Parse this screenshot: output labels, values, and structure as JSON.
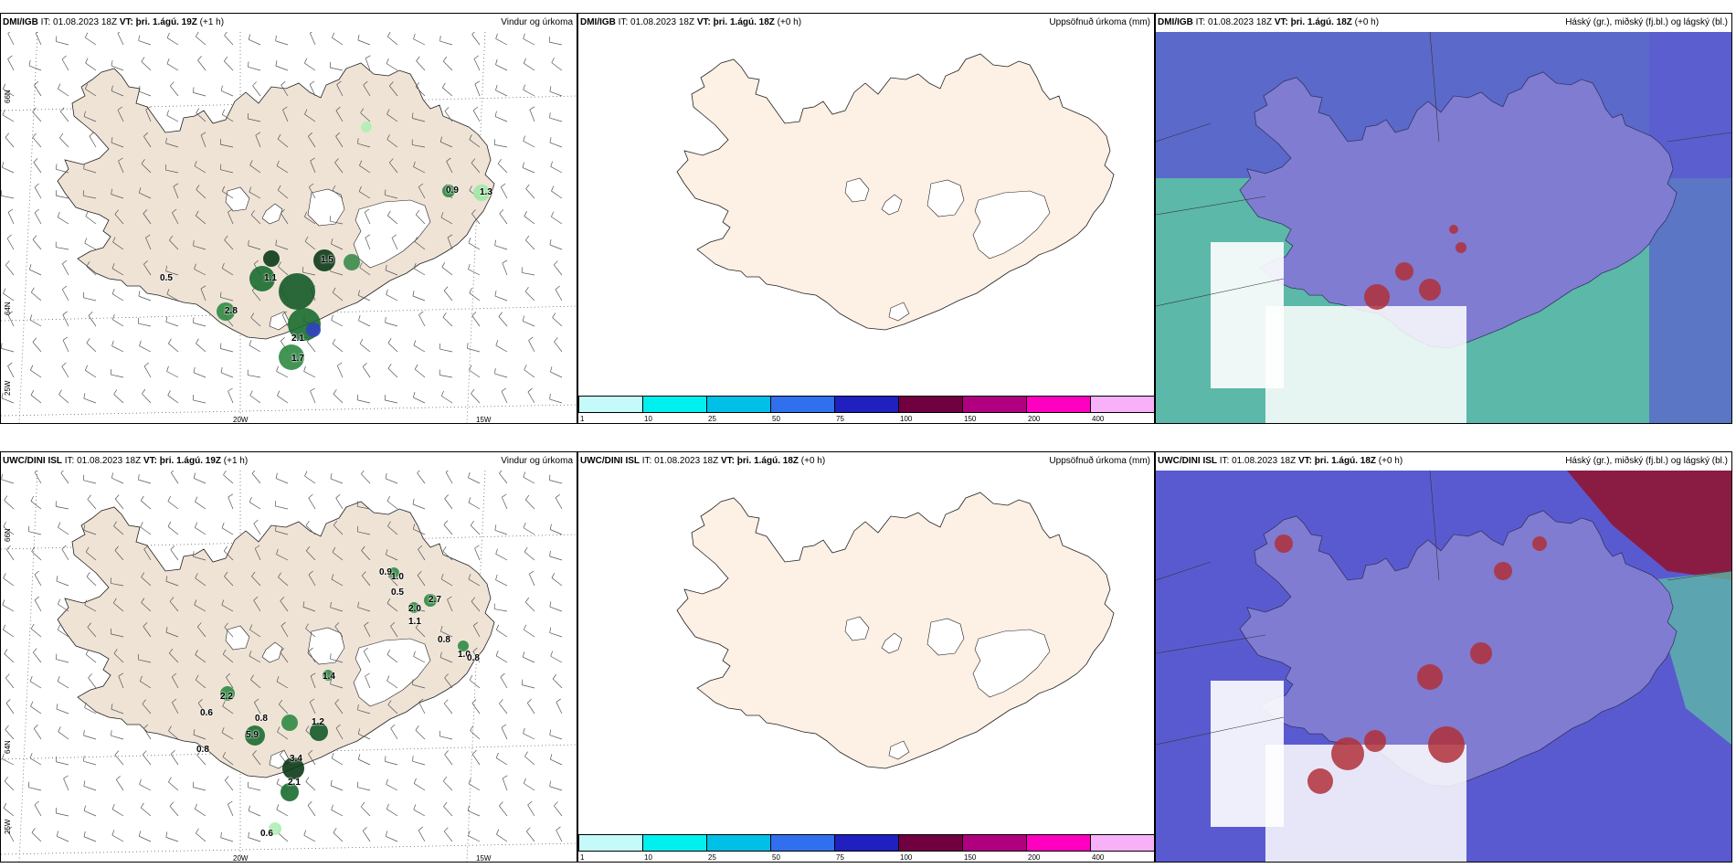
{
  "rows": [
    {
      "model": "DMI/IGB",
      "it": "IT: 01.08.2023 18Z",
      "vt_label": "VT:",
      "vt_wind": "þri. 1.ágú. 19Z",
      "vt_other": "þri. 1.ágú. 18Z",
      "lead_wind": "(+1 h)",
      "lead_other": "(+0 h)",
      "point_labels": [
        "0.9",
        "1.3",
        "0.5",
        "1.1",
        "1.5",
        "2.8",
        "2.1",
        "1.7"
      ]
    },
    {
      "model": "UWC/DINI ISL",
      "it": "IT: 01.08.2023 18Z",
      "vt_label": "VT:",
      "vt_wind": "þri. 1.ágú. 19Z",
      "vt_other": "þri. 1.ágú. 18Z",
      "lead_wind": "(+1 h)",
      "lead_other": "(+0 h)",
      "point_labels": [
        "0.9",
        "1.0",
        "0.5",
        "2.7",
        "2.0",
        "1.1",
        "0.8",
        "1.0",
        "0.8",
        "1.4",
        "2.2",
        "0.6",
        "0.8",
        "5.9",
        "1.2",
        "0.8",
        "3.4",
        "2.1",
        "0.6"
      ]
    }
  ],
  "panel_titles": {
    "wind": "Vindur og úrkoma",
    "precip": "Uppsöfnuð úrkoma (mm)",
    "cloud": "Háský (gr.), miðský (fj.bl.) og lágský (bl.)"
  },
  "axis_labels": {
    "lon": [
      "20W",
      "15W"
    ],
    "lat": [
      "66N",
      "64N",
      "25W"
    ]
  },
  "colorbar": {
    "ticks": [
      "1",
      "10",
      "25",
      "50",
      "75",
      "100",
      "150",
      "200",
      "400"
    ],
    "colors": [
      "#c4fafa",
      "#00f0f0",
      "#00c0e8",
      "#3070ee",
      "#2020c0",
      "#700040",
      "#b00080",
      "#ff00c0",
      "#f8b0f8"
    ]
  },
  "colors": {
    "land": "#efe3d6",
    "land_plain": "#fdf0e4",
    "precip_green": "#1a6b30",
    "cloud_high": "#5cb8a8",
    "cloud_mid": "#5a5ad0",
    "cloud_low": "#b0303a"
  }
}
